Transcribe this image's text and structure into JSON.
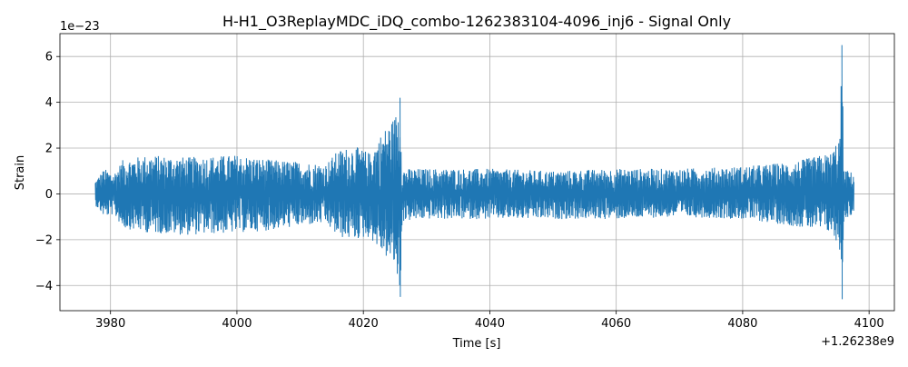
{
  "chart_data": {
    "type": "line",
    "title": "H-H1_O3ReplayMDC_iDQ_combo-1262383104-4096_inj6 - Signal Only",
    "xlabel": "Time [s]",
    "ylabel": "Strain",
    "x_offset_label": "+1.26238e9",
    "y_scale_label": "1e−23",
    "xlim": [
      3972,
      4104
    ],
    "ylim": [
      -5.1,
      7.0
    ],
    "x_ticks": [
      3980,
      4000,
      4020,
      4040,
      4060,
      4080,
      4100
    ],
    "x_tick_labels": [
      "3980",
      "4000",
      "4020",
      "4040",
      "4060",
      "4080",
      "4100"
    ],
    "y_ticks": [
      -4,
      -2,
      0,
      2,
      4,
      6
    ],
    "y_tick_labels": [
      "−4",
      "−2",
      "0",
      "2",
      "4",
      "6"
    ],
    "grid": true,
    "series": [
      {
        "color": "#1f77b4",
        "x_range": [
          3977.6,
          4097.6
        ],
        "envelope": [
          {
            "x": 3977.6,
            "lo": -0.5,
            "hi": 0.6
          },
          {
            "x": 3979.0,
            "lo": -1.0,
            "hi": 1.1
          },
          {
            "x": 3980.5,
            "lo": -0.9,
            "hi": 0.9
          },
          {
            "x": 3982.0,
            "lo": -1.5,
            "hi": 1.5
          },
          {
            "x": 3986.0,
            "lo": -1.7,
            "hi": 1.7
          },
          {
            "x": 3992.0,
            "lo": -1.8,
            "hi": 1.6
          },
          {
            "x": 4000.0,
            "lo": -1.7,
            "hi": 1.7
          },
          {
            "x": 4005.0,
            "lo": -1.6,
            "hi": 1.5
          },
          {
            "x": 4010.0,
            "lo": -1.4,
            "hi": 1.4
          },
          {
            "x": 4014.0,
            "lo": -1.3,
            "hi": 1.3
          },
          {
            "x": 4016.0,
            "lo": -1.9,
            "hi": 1.9
          },
          {
            "x": 4018.5,
            "lo": -2.0,
            "hi": 2.1
          },
          {
            "x": 4021.0,
            "lo": -1.9,
            "hi": 1.8
          },
          {
            "x": 4023.0,
            "lo": -2.6,
            "hi": 2.7
          },
          {
            "x": 4025.0,
            "lo": -3.2,
            "hi": 3.4
          },
          {
            "x": 4025.8,
            "lo": -4.5,
            "hi": 4.2
          },
          {
            "x": 4026.2,
            "lo": -1.2,
            "hi": 1.1
          },
          {
            "x": 4030.0,
            "lo": -1.1,
            "hi": 1.1
          },
          {
            "x": 4040.0,
            "lo": -1.1,
            "hi": 1.1
          },
          {
            "x": 4050.0,
            "lo": -1.1,
            "hi": 1.0
          },
          {
            "x": 4060.0,
            "lo": -1.1,
            "hi": 1.1
          },
          {
            "x": 4070.0,
            "lo": -1.0,
            "hi": 1.1
          },
          {
            "x": 4080.0,
            "lo": -1.1,
            "hi": 1.2
          },
          {
            "x": 4088.0,
            "lo": -1.4,
            "hi": 1.4
          },
          {
            "x": 4094.0,
            "lo": -1.7,
            "hi": 1.8
          },
          {
            "x": 4095.4,
            "lo": -2.5,
            "hi": 2.6
          },
          {
            "x": 4095.7,
            "lo": -4.6,
            "hi": 6.5
          },
          {
            "x": 4096.0,
            "lo": -1.1,
            "hi": 1.1
          },
          {
            "x": 4097.6,
            "lo": -0.9,
            "hi": 0.9
          }
        ]
      }
    ]
  }
}
